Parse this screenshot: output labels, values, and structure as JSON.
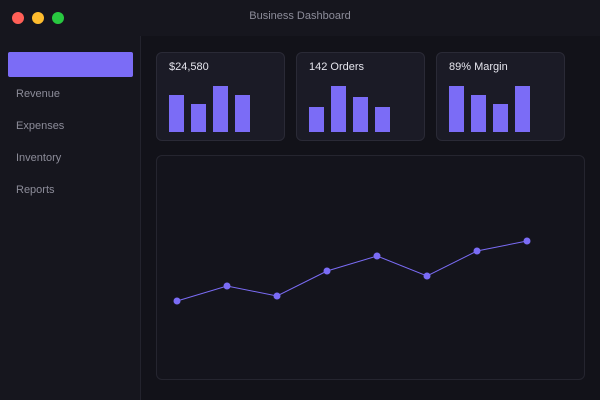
{
  "window": {
    "title": "Business Dashboard"
  },
  "sidebar": {
    "active_label": "",
    "items": [
      {
        "label": "Revenue"
      },
      {
        "label": "Expenses"
      },
      {
        "label": "Inventory"
      },
      {
        "label": "Reports"
      }
    ]
  },
  "main": {
    "heading": ""
  },
  "cards": [
    {
      "value": "$24,580",
      "bars": [
        0.8,
        0.6,
        1.0,
        0.8
      ]
    },
    {
      "value": "142 Orders",
      "bars": [
        0.55,
        1.0,
        0.75,
        0.55
      ]
    },
    {
      "value": "89% Margin",
      "bars": [
        1.0,
        0.8,
        0.6,
        1.0
      ]
    }
  ],
  "colors": {
    "accent": "#7b6cf6",
    "background": "#121219",
    "sidebar": "#16161e",
    "card": "#1b1b26"
  },
  "chart_data": {
    "type": "line",
    "x": [
      1,
      2,
      3,
      4,
      5,
      6,
      7,
      8
    ],
    "series": [
      {
        "values": [
          0,
          3,
          1,
          6,
          9,
          5,
          10,
          12
        ]
      }
    ],
    "ylim": [
      0,
      12
    ],
    "grid": false,
    "legend": "none",
    "color": "#7b6cf6"
  }
}
